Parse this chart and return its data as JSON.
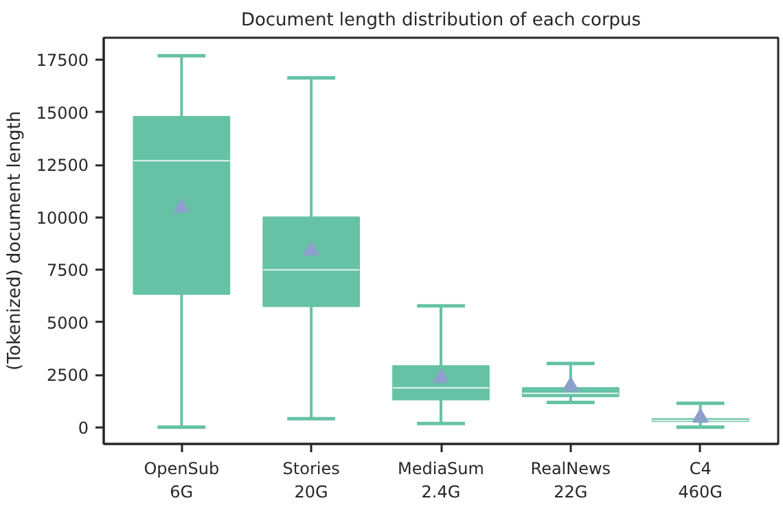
{
  "chart_data": {
    "type": "box",
    "title": "Document length distribution of each corpus",
    "ylabel": "(Tokenized) document length",
    "categories": [
      "OpenSub\n6G",
      "Stories\n20G",
      "MediaSum\n2.4G",
      "RealNews\n22G",
      "C4\n460G"
    ],
    "color": "#66c2a5",
    "marker": "triangle",
    "grid": false,
    "ylim": [
      -800,
      18550
    ],
    "yticks": [
      0,
      2500,
      5000,
      7500,
      10000,
      12500,
      15000,
      17500
    ],
    "boxes": [
      {
        "low": 0,
        "q1": 6330,
        "median": 12690,
        "q3": 14790,
        "high": 17690,
        "mean": 10460
      },
      {
        "low": 400,
        "q1": 5750,
        "median": 7490,
        "q3": 10000,
        "high": 16640,
        "mean": 8420
      },
      {
        "low": 170,
        "q1": 1310,
        "median": 1870,
        "q3": 2920,
        "high": 5780,
        "mean": 2340
      },
      {
        "low": 1180,
        "q1": 1460,
        "median": 1610,
        "q3": 1870,
        "high": 3030,
        "mean": 1950
      },
      {
        "low": 0,
        "q1": 280,
        "median": 320,
        "q3": 390,
        "high": 1140,
        "mean": 450
      }
    ]
  }
}
